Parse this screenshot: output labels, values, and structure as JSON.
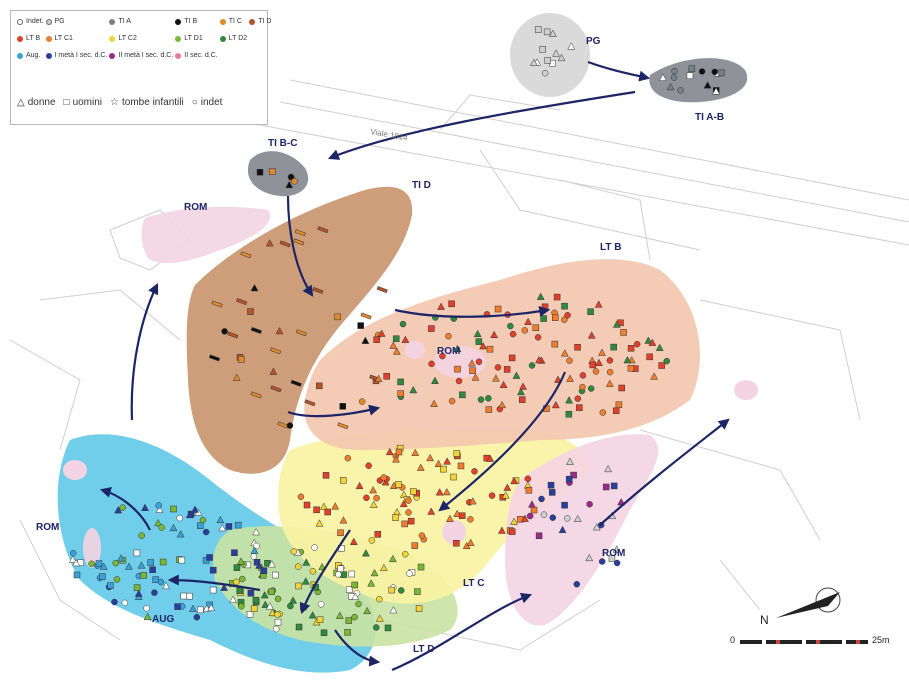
{
  "legend": {
    "items": [
      {
        "label": "Indet.",
        "color": "#ffffff",
        "hollow": true
      },
      {
        "label": "PG",
        "color": "#cfcfcf",
        "hollow": true
      },
      {
        "label": "TI A",
        "color": "#7a7f8a",
        "hollow": false
      },
      {
        "label": "TI B",
        "color": "#111111",
        "hollow": false
      },
      {
        "label": "TI C",
        "color": "#e08a2b",
        "hollow": false
      },
      {
        "label": "TI D",
        "color": "#b5532a",
        "hollow": false
      },
      {
        "label": "LT B",
        "color": "#e2402a",
        "hollow": false
      },
      {
        "label": "LT C1",
        "color": "#ef7d2d",
        "hollow": false
      },
      {
        "label": "LT C2",
        "color": "#f2d33a",
        "hollow": false
      },
      {
        "label": "LT D1",
        "color": "#79b836",
        "hollow": false
      },
      {
        "label": "LT D2",
        "color": "#2f8a3e",
        "hollow": false
      },
      {
        "label": "",
        "color": "",
        "hollow": false
      },
      {
        "label": "Aug.",
        "color": "#3aa0d8",
        "hollow": false
      },
      {
        "label": "I metà I sec. d.C.",
        "color": "#2a3f9c",
        "hollow": false
      },
      {
        "label": "II metà I sec. d.C.",
        "color": "#9b2a8a",
        "hollow": false
      },
      {
        "label": "II sec. d.C.",
        "color": "#e57aa8",
        "hollow": false
      }
    ],
    "shapes": [
      {
        "glyph": "△",
        "label": "donne"
      },
      {
        "glyph": "□",
        "label": "uomini"
      },
      {
        "glyph": "☆",
        "label": "tombe infantili"
      },
      {
        "glyph": "○",
        "label": "indet"
      }
    ]
  },
  "street_label": "Viale 1814",
  "zone_labels": {
    "pg": "PG",
    "tiab": "TI A-B",
    "tibc": "TI B-C",
    "tid": "TI D",
    "ltb": "LT B",
    "rom_nw": "ROM",
    "rom_center": "ROM",
    "rom_west": "ROM",
    "rom_east": "ROM",
    "ltc": "LT C",
    "ltd": "LT D",
    "aug": "AUG"
  },
  "scale": {
    "zero": "0",
    "end": "25m"
  },
  "north_label": "N",
  "colors": {
    "arrow": "#1c2566",
    "zone_tid": "#c8936a",
    "zone_ltb": "#f3c7ae",
    "zone_ltc": "#f9f3a2",
    "zone_ltd": "#c9e3a2",
    "zone_aug": "#57c5e8",
    "zone_rom": "#f4d4e2",
    "zone_pg": "#dadada",
    "zone_ti": "#8f9399"
  }
}
